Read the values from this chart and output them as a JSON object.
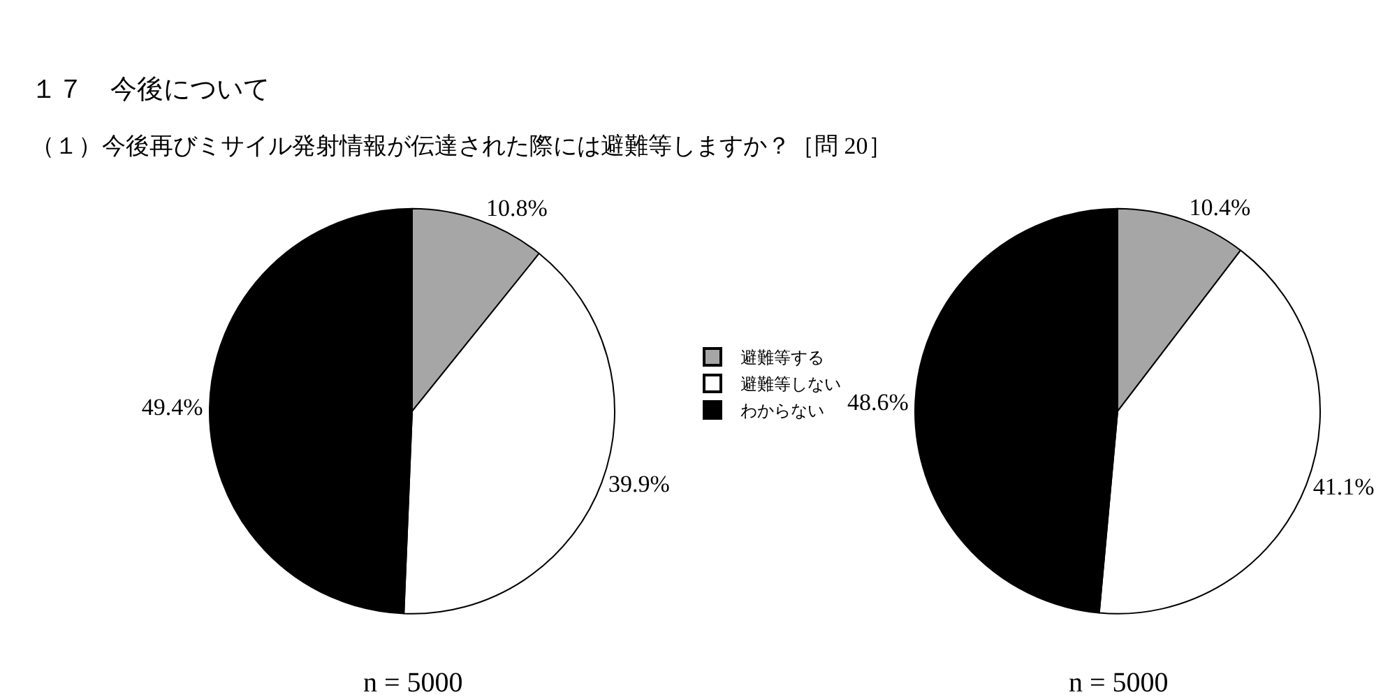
{
  "chart_data": [
    {
      "type": "pie",
      "title": "１７　今後について",
      "subtitle": "（１）今後再びミサイル発射情報が伝達された際には避難等しますか？［問 20］",
      "categories": [
        "避難等する",
        "避難等しない",
        "わからない"
      ],
      "values": [
        10.8,
        39.9,
        49.4
      ],
      "value_labels": [
        "10.8%",
        "39.9%",
        "49.4%"
      ],
      "colors": [
        "#a6a6a6",
        "#ffffff",
        "#000000"
      ],
      "legend": "right",
      "annotations": [
        "n = 5000"
      ]
    },
    {
      "type": "pie",
      "categories": [
        null,
        null,
        null
      ],
      "values": [
        10.4,
        41.1,
        48.6
      ],
      "value_labels": [
        "10.4%",
        "41.1%",
        "48.6%"
      ],
      "colors": [
        "#a6a6a6",
        "#ffffff",
        "#000000"
      ],
      "annotations": [
        "n = 5000"
      ]
    }
  ]
}
